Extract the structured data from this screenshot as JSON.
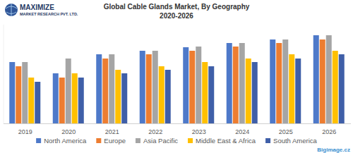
{
  "header": {
    "logo_title": "MAXIMIZE",
    "logo_subtitle": "MARKET RESEARCH PVT. LTD."
  },
  "watermark": "Bigimage.cz",
  "chart_data": {
    "type": "bar",
    "title": "Global Cable Glands Market, By Geography",
    "subtitle": "2020-2026",
    "categories": [
      "2019",
      "2020",
      "2021",
      "2022",
      "2023",
      "2024",
      "2025",
      "2026"
    ],
    "series": [
      {
        "name": "North America",
        "color": "#4e79c9",
        "values": [
          87,
          71,
          98,
          103,
          108,
          114,
          119,
          125
        ]
      },
      {
        "name": "Europe",
        "color": "#ed7d31",
        "values": [
          81,
          65,
          92,
          98,
          103,
          109,
          114,
          119
        ]
      },
      {
        "name": "Asia Pacific",
        "color": "#a5a5a5",
        "values": [
          87,
          92,
          98,
          103,
          109,
          114,
          119,
          125
        ]
      },
      {
        "name": "Middle East & Africa",
        "color": "#ffc000",
        "values": [
          65,
          71,
          76,
          81,
          87,
          92,
          98,
          103
        ]
      },
      {
        "name": "South America",
        "color": "#3f5fa8",
        "values": [
          59,
          65,
          71,
          76,
          81,
          87,
          92,
          98
        ]
      }
    ],
    "ylim": [
      0,
      140
    ],
    "tick_labels": "x",
    "grid": false,
    "legend": "bottom"
  }
}
